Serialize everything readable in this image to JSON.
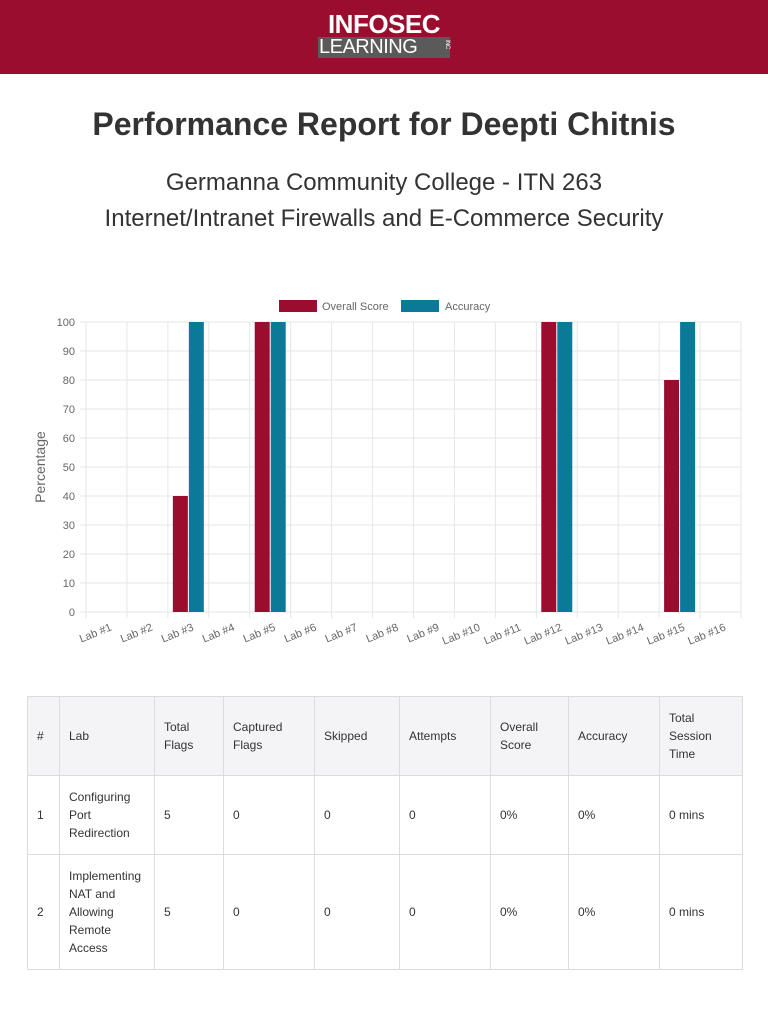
{
  "header": {
    "logo_top": "INFOSEC",
    "logo_bottom": "LEARNING",
    "logo_inc": "INC",
    "brand_color": "#9b0d2e"
  },
  "report": {
    "title": "Performance Report for Deepti Chitnis",
    "subtitle_line1": "Germanna Community College - ITN 263",
    "subtitle_line2": "Internet/Intranet Firewalls and E-Commerce Security"
  },
  "chart_data": {
    "type": "bar",
    "title": "",
    "xlabel": "",
    "ylabel": "Percentage",
    "ylim": [
      0,
      100
    ],
    "yticks": [
      0,
      10,
      20,
      30,
      40,
      50,
      60,
      70,
      80,
      90,
      100
    ],
    "grid": true,
    "legend_position": "top",
    "categories": [
      "Lab #1",
      "Lab #2",
      "Lab #3",
      "Lab #4",
      "Lab #5",
      "Lab #6",
      "Lab #7",
      "Lab #8",
      "Lab #9",
      "Lab #10",
      "Lab #11",
      "Lab #12",
      "Lab #13",
      "Lab #14",
      "Lab #15",
      "Lab #16"
    ],
    "series": [
      {
        "name": "Overall Score",
        "color": "#9b0d2e",
        "values": [
          0,
          0,
          40,
          0,
          100,
          0,
          0,
          0,
          0,
          0,
          0,
          100,
          0,
          0,
          80,
          0
        ]
      },
      {
        "name": "Accuracy",
        "color": "#0b7a99",
        "values": [
          0,
          0,
          100,
          0,
          100,
          0,
          0,
          0,
          0,
          0,
          0,
          100,
          0,
          0,
          100,
          0
        ]
      }
    ]
  },
  "table": {
    "headers": {
      "num": "#",
      "lab": "Lab",
      "total_flags": "Total Flags",
      "captured_flags": "Captured Flags",
      "skipped": "Skipped",
      "attempts": "Attempts",
      "overall_score": "Overall Score",
      "accuracy": "Accuracy",
      "session_time": "Total Session Time"
    },
    "rows": [
      {
        "num": "1",
        "lab": "Configuring Port Redirection",
        "total_flags": "5",
        "captured_flags": "0",
        "skipped": "0",
        "attempts": "0",
        "overall_score": "0%",
        "accuracy": "0%",
        "session_time": "0 mins"
      },
      {
        "num": "2",
        "lab": "Implementing NAT and Allowing Remote Access",
        "total_flags": "5",
        "captured_flags": "0",
        "skipped": "0",
        "attempts": "0",
        "overall_score": "0%",
        "accuracy": "0%",
        "session_time": "0 mins"
      }
    ]
  }
}
